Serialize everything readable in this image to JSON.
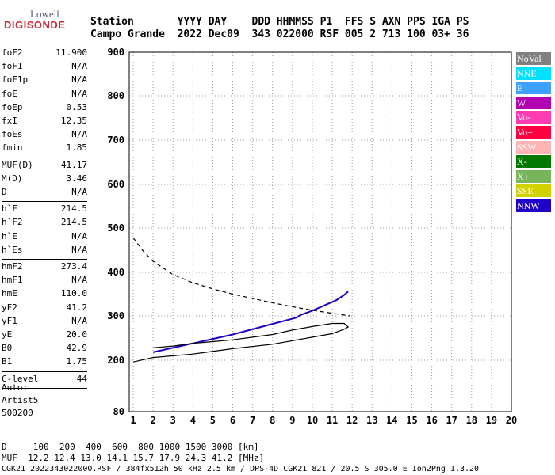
{
  "logo": {
    "top": "Lowell",
    "bottom": "DIGISONDE"
  },
  "header": {
    "row1": "Station       YYYY DAY    DDD HHMMSS P1  FFS S AXN PPS IGA PS",
    "row2": "Campo Grande  2022 Dec09  343 022000 RSF 005 2 713 100 03+ 36"
  },
  "params": [
    {
      "name": "foF2",
      "value": "11.900"
    },
    {
      "name": "foF1",
      "value": "N/A"
    },
    {
      "name": "foF1p",
      "value": "N/A"
    },
    {
      "name": "foE",
      "value": "N/A"
    },
    {
      "name": "foEp",
      "value": "0.53"
    },
    {
      "name": "fxI",
      "value": "12.35"
    },
    {
      "name": "foEs",
      "value": "N/A"
    },
    {
      "name": "fmin",
      "value": "1.85"
    },
    {
      "name": "MUF(D)",
      "value": "41.17"
    },
    {
      "name": "M(D)",
      "value": "3.46"
    },
    {
      "name": "D",
      "value": "N/A"
    },
    {
      "name": "h`F",
      "value": "214.5"
    },
    {
      "name": "h`F2",
      "value": "214.5"
    },
    {
      "name": "h`E",
      "value": "N/A"
    },
    {
      "name": "h`Es",
      "value": "N/A"
    },
    {
      "name": "hmF2",
      "value": "273.4"
    },
    {
      "name": "hmF1",
      "value": "N/A"
    },
    {
      "name": "hmE",
      "value": "110.0"
    },
    {
      "name": "yF2",
      "value": "41.2"
    },
    {
      "name": "yF1",
      "value": "N/A"
    },
    {
      "name": "yE",
      "value": "20.0"
    },
    {
      "name": "B0",
      "value": "42.9"
    },
    {
      "name": "B1",
      "value": "1.75"
    },
    {
      "name": "C-level",
      "value": "44"
    }
  ],
  "auto": {
    "line1": "Auto:",
    "line2": "Artist5",
    "line3": "500200"
  },
  "footer": {
    "line1": "D     100  200  400  600  800 1000 1500 3000 [km]",
    "line2": "MUF  12.2 12.4 13.0 14.1 15.7 17.9 24.3 41.2 [MHz]",
    "line3": "CGK21_2022343022000.RSF / 384fx512h 50 kHz 2.5 km / DPS-4D CGK21 821 / 20.5 S 305.0 E Ion2Png 1.3.20"
  },
  "legend": [
    {
      "label": "NoVal",
      "color": "#808080"
    },
    {
      "label": "NNE",
      "color": "#00e0ff"
    },
    {
      "label": "E",
      "color": "#3ea0ff"
    },
    {
      "label": "W",
      "color": "#b000b0"
    },
    {
      "label": "Vo-",
      "color": "#ff3cb4"
    },
    {
      "label": "Vo+",
      "color": "#ff0040"
    },
    {
      "label": "SSW",
      "color": "#ffb4b4"
    },
    {
      "label": "X-",
      "color": "#007800"
    },
    {
      "label": "X+",
      "color": "#78b45a"
    },
    {
      "label": "SSE",
      "color": "#d2d200"
    },
    {
      "label": "NNW",
      "color": "#1e00c8"
    }
  ],
  "chart_data": {
    "type": "scatter",
    "xlim": [
      1,
      20
    ],
    "ylim": [
      80,
      900
    ],
    "x_ticks": [
      1,
      2,
      3,
      4,
      5,
      6,
      7,
      8,
      9,
      10,
      11,
      12,
      13,
      14,
      15,
      16,
      17,
      18,
      19,
      20
    ],
    "y_ticks": [
      80,
      200,
      300,
      400,
      500,
      600,
      700,
      800,
      900
    ],
    "grid": true,
    "legend_position": "right",
    "series": [
      {
        "color": "#1e00c8",
        "points": [
          [
            2,
            218
          ],
          [
            4,
            238
          ],
          [
            6,
            258
          ],
          [
            8,
            282
          ],
          [
            9.2,
            296
          ],
          [
            9.4,
            302
          ],
          [
            10,
            312
          ],
          [
            11.2,
            336
          ],
          [
            11.6,
            348
          ],
          [
            11.8,
            356
          ]
        ]
      },
      {
        "color": "#000000",
        "points": [
          [
            1,
            196
          ],
          [
            2,
            206
          ],
          [
            4,
            214
          ],
          [
            6,
            226
          ],
          [
            8,
            236
          ],
          [
            10,
            252
          ],
          [
            11,
            260
          ],
          [
            11.6,
            270
          ],
          [
            11.8,
            275
          ],
          [
            11.6,
            283
          ],
          [
            11,
            283
          ],
          [
            10,
            276
          ],
          [
            9,
            268
          ],
          [
            8,
            258
          ],
          [
            7,
            252
          ],
          [
            6,
            246
          ],
          [
            5,
            242
          ],
          [
            4,
            238
          ],
          [
            3,
            232
          ],
          [
            2,
            228
          ]
        ]
      },
      {
        "color": "#000000",
        "dashed": true,
        "points": [
          [
            1,
            478
          ],
          [
            1.5,
            448
          ],
          [
            2,
            425
          ],
          [
            3,
            395
          ],
          [
            4,
            376
          ],
          [
            5,
            362
          ],
          [
            6,
            350
          ],
          [
            7,
            340
          ],
          [
            8,
            330
          ],
          [
            9,
            321
          ],
          [
            10,
            313
          ],
          [
            11,
            306
          ],
          [
            11.9,
            300
          ]
        ]
      }
    ]
  }
}
